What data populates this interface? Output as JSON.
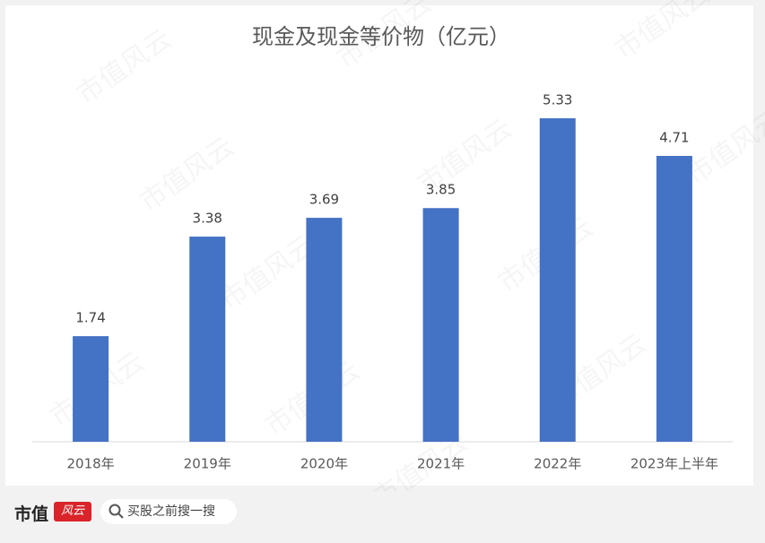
{
  "chart_data": {
    "type": "bar",
    "title": "现金及现金等价物（亿元）",
    "categories": [
      "2018年",
      "2019年",
      "2020年",
      "2021年",
      "2022年",
      "2023年上半年"
    ],
    "values": [
      1.74,
      3.38,
      3.69,
      3.85,
      5.33,
      4.71
    ],
    "color": "#4472c4"
  },
  "watermark": "市值风云",
  "footer": {
    "brand": "市值",
    "brand_icon": "风云",
    "search": "买股之前搜一搜"
  }
}
